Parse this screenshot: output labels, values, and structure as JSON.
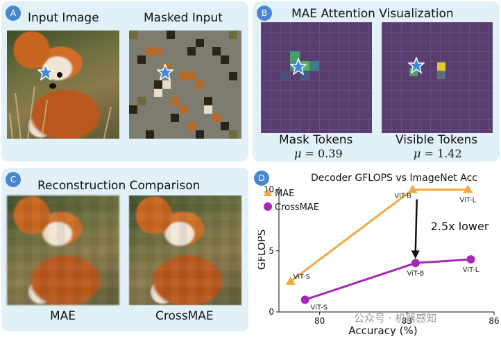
{
  "panel_a": {
    "badge": "A",
    "input_title": "Input Image",
    "masked_title": "Masked Input"
  },
  "panel_b": {
    "badge": "B",
    "title": "MAE Attention Visualization",
    "mask_caption": "Mask Tokens",
    "visible_caption": "Visible Tokens",
    "mask_mu_symbol": "μ",
    "mask_mu_value": "= 0.39",
    "visible_mu_symbol": "μ",
    "visible_mu_value": "= 1.42"
  },
  "panel_c": {
    "badge": "C",
    "title": "Reconstruction Comparison",
    "left_caption": "MAE",
    "right_caption": "CrossMAE"
  },
  "panel_d": {
    "badge": "D"
  },
  "watermark": "公众号 · 机器感知",
  "colors": {
    "panel_bg": "#e2f1f8",
    "badge": "#4a86d0",
    "mae": "#f2a93b",
    "crossmae": "#a826b7",
    "star": "#3a8de0"
  },
  "chart_data": {
    "type": "line",
    "title": "Decoder GFLOPS vs ImageNet Acc",
    "xlabel": "Accuracy (%)",
    "ylabel": "GFLOPS",
    "xlim": [
      78.6,
      86.0
    ],
    "ylim": [
      0,
      10.2
    ],
    "xticks": [
      80,
      83,
      86
    ],
    "yticks": [
      0,
      5,
      10
    ],
    "annotation": "2.5x lower",
    "series": [
      {
        "name": "MAE",
        "marker": "triangle",
        "color": "#f2a93b",
        "points": [
          {
            "x": 79.0,
            "y": 2.5,
            "label": "ViT-S"
          },
          {
            "x": 83.2,
            "y": 10.0,
            "label": "ViT-B"
          },
          {
            "x": 85.1,
            "y": 10.0,
            "label": "ViT-L"
          }
        ]
      },
      {
        "name": "CrossMAE",
        "marker": "circle",
        "color": "#a826b7",
        "points": [
          {
            "x": 79.5,
            "y": 1.0,
            "label": "ViT-S"
          },
          {
            "x": 83.3,
            "y": 4.0,
            "label": "ViT-B"
          },
          {
            "x": 85.2,
            "y": 4.3,
            "label": "ViT-L"
          }
        ]
      }
    ]
  }
}
